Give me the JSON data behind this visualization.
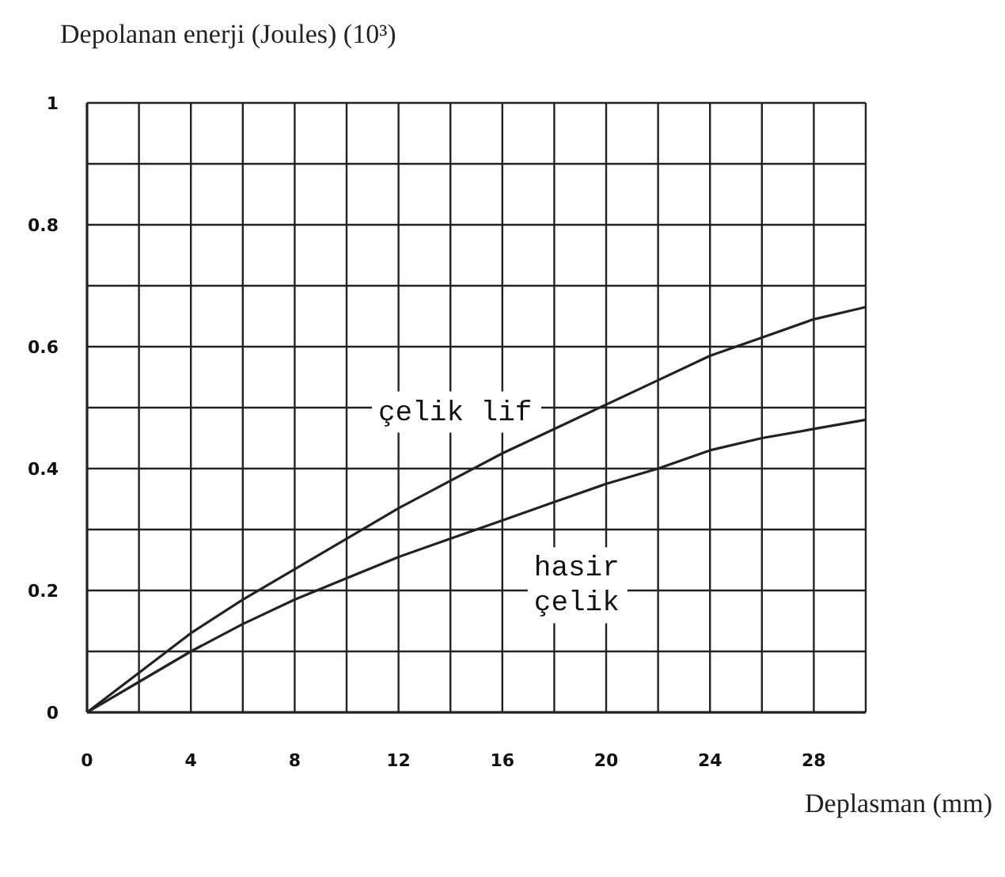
{
  "chart_data": {
    "type": "line",
    "ylabel": "Depolanan enerji (Joules) (10³)",
    "xlabel": "Deplasman (mm)",
    "x": [
      0,
      2,
      4,
      6,
      8,
      10,
      12,
      14,
      16,
      18,
      20,
      22,
      24,
      26,
      28,
      30
    ],
    "series": [
      {
        "name": "çelik lif",
        "color": "#222222",
        "values": [
          0,
          0.065,
          0.13,
          0.185,
          0.235,
          0.285,
          0.335,
          0.38,
          0.425,
          0.465,
          0.505,
          0.545,
          0.585,
          0.615,
          0.645,
          0.665
        ]
      },
      {
        "name": "hasir çelik",
        "color": "#222222",
        "values": [
          0,
          0.05,
          0.1,
          0.145,
          0.185,
          0.22,
          0.255,
          0.285,
          0.315,
          0.345,
          0.375,
          0.4,
          0.43,
          0.45,
          0.465,
          0.48
        ]
      }
    ],
    "xlim": [
      0,
      30
    ],
    "xticks": [
      0,
      {
        "value": 2,
        "label": null
      },
      4,
      {
        "value": 6,
        "label": null
      },
      8,
      {
        "value": 10,
        "label": null
      },
      12,
      {
        "value": 14,
        "label": null
      },
      16,
      {
        "value": 18,
        "label": null
      },
      20,
      {
        "value": 22,
        "label": null
      },
      24,
      {
        "value": 26,
        "label": null
      },
      28,
      {
        "value": 30,
        "label": null
      }
    ],
    "ylim": [
      0,
      1
    ],
    "yticks": [
      0,
      {
        "value": 0.1,
        "label": null
      },
      0.2,
      {
        "value": 0.3,
        "label": null
      },
      0.4,
      {
        "value": 0.5,
        "label": null
      },
      0.6,
      {
        "value": 0.7,
        "label": null
      },
      0.8,
      {
        "value": 0.9,
        "label": null
      },
      1
    ],
    "grid": true,
    "marker": "none",
    "line_style": "solid"
  }
}
